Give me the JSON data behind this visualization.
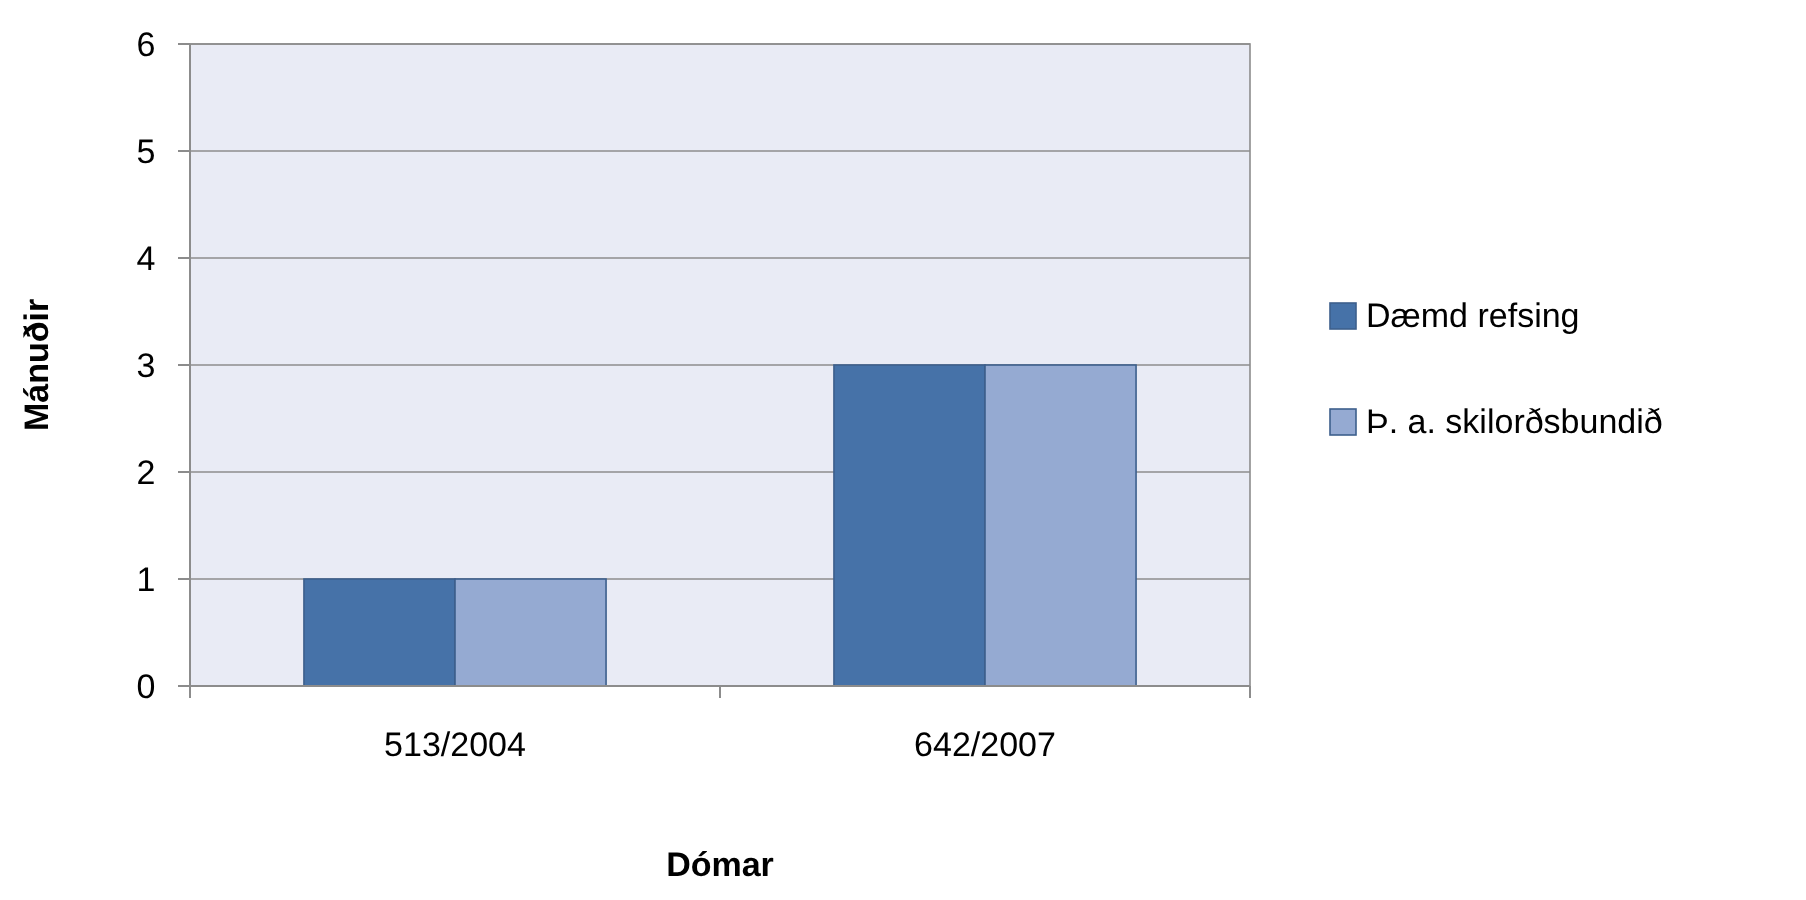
{
  "chart_data": {
    "type": "bar",
    "xlabel": "Dómar",
    "ylabel": "Mánuðir",
    "categories": [
      "513/2004",
      "642/2007"
    ],
    "series": [
      {
        "name": "Dæmd refsing",
        "color": "#4672a8",
        "values": [
          1,
          3
        ]
      },
      {
        "name": "Þ. a. skilorðsbundið",
        "color": "#95aad2",
        "values": [
          1,
          3
        ]
      }
    ],
    "ylim": [
      0,
      6
    ],
    "yticks": [
      0,
      1,
      2,
      3,
      4,
      5,
      6
    ],
    "grid": "y",
    "legend": "right"
  }
}
